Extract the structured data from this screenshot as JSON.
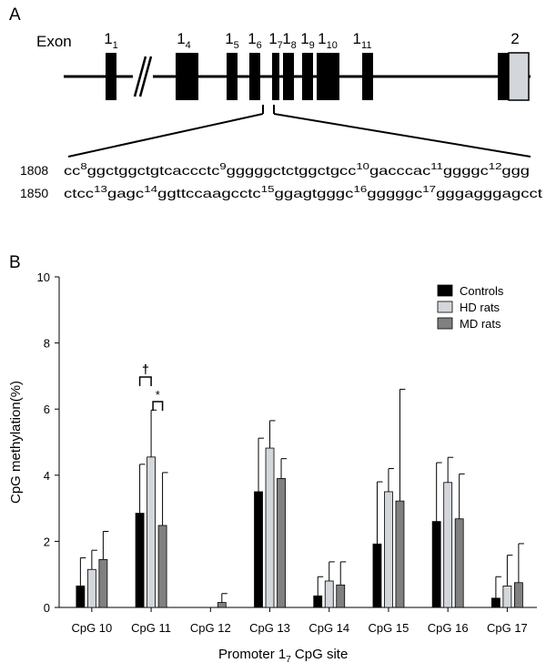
{
  "panel_a": {
    "label": "A",
    "exon_word": "Exon",
    "exons": [
      {
        "base": "1",
        "sub": "1"
      },
      {
        "base": "1",
        "sub": "4"
      },
      {
        "base": "1",
        "sub": "5"
      },
      {
        "base": "1",
        "sub": "6"
      },
      {
        "base": "1",
        "sub": "7"
      },
      {
        "base": "1",
        "sub": "8"
      },
      {
        "base": "1",
        "sub": "9"
      },
      {
        "base": "1",
        "sub": "10"
      },
      {
        "base": "1",
        "sub": "11"
      },
      {
        "base": "2",
        "sub": ""
      }
    ],
    "sequence_lines": [
      {
        "pos": "1808",
        "segments": [
          {
            "t": "cc"
          },
          {
            "s": "8"
          },
          {
            "t": "ggctggctgtcaccctc"
          },
          {
            "s": "9"
          },
          {
            "t": "gggggctctggctgcc"
          },
          {
            "s": "10"
          },
          {
            "t": "gacccac"
          },
          {
            "s": "11"
          },
          {
            "t": "ggggc"
          },
          {
            "s": "12"
          },
          {
            "t": "ggg"
          }
        ]
      },
      {
        "pos": "1850",
        "segments": [
          {
            "t": "ctcc"
          },
          {
            "s": "13"
          },
          {
            "t": "gagc"
          },
          {
            "s": "14"
          },
          {
            "t": "ggttccaagcctc"
          },
          {
            "s": "15"
          },
          {
            "t": "ggagtgggc"
          },
          {
            "s": "16"
          },
          {
            "t": "gggggc"
          },
          {
            "s": "17"
          },
          {
            "t": "gggagggagcct"
          }
        ]
      }
    ]
  },
  "panel_b": {
    "label": "B",
    "annotations": [
      {
        "symbol": "†"
      },
      {
        "symbol": "*"
      }
    ]
  },
  "chart_data": {
    "type": "bar",
    "ylabel": "CpG methylation(%)",
    "xlabel_base": "Promoter 1",
    "xlabel_sub": "7",
    "xlabel_tail": " CpG site",
    "ylim": [
      0,
      10
    ],
    "yticks": [
      0,
      2,
      4,
      6,
      8,
      10
    ],
    "categories": [
      "CpG 10",
      "CpG 11",
      "CpG 12",
      "CpG 13",
      "CpG 14",
      "CpG 15",
      "CpG 16",
      "CpG 17"
    ],
    "legend_position": "top-right",
    "series": [
      {
        "name": "Controls",
        "color": "#000000",
        "values": [
          0.65,
          2.85,
          0.0,
          3.5,
          0.35,
          1.92,
          2.6,
          0.28
        ],
        "errors": [
          0.85,
          1.48,
          0.0,
          1.62,
          0.58,
          1.88,
          1.78,
          0.65
        ]
      },
      {
        "name": "HD rats",
        "color": "#d3d6da",
        "values": [
          1.15,
          4.55,
          0.0,
          4.82,
          0.8,
          3.5,
          3.78,
          0.65
        ],
        "errors": [
          0.58,
          1.42,
          0.0,
          0.83,
          0.58,
          0.7,
          0.76,
          0.93
        ]
      },
      {
        "name": "MD rats",
        "color": "#808080",
        "values": [
          1.45,
          2.48,
          0.15,
          3.9,
          0.68,
          3.22,
          2.68,
          0.75
        ],
        "errors": [
          0.85,
          1.6,
          0.27,
          0.6,
          0.7,
          3.38,
          1.36,
          1.18
        ]
      }
    ]
  }
}
